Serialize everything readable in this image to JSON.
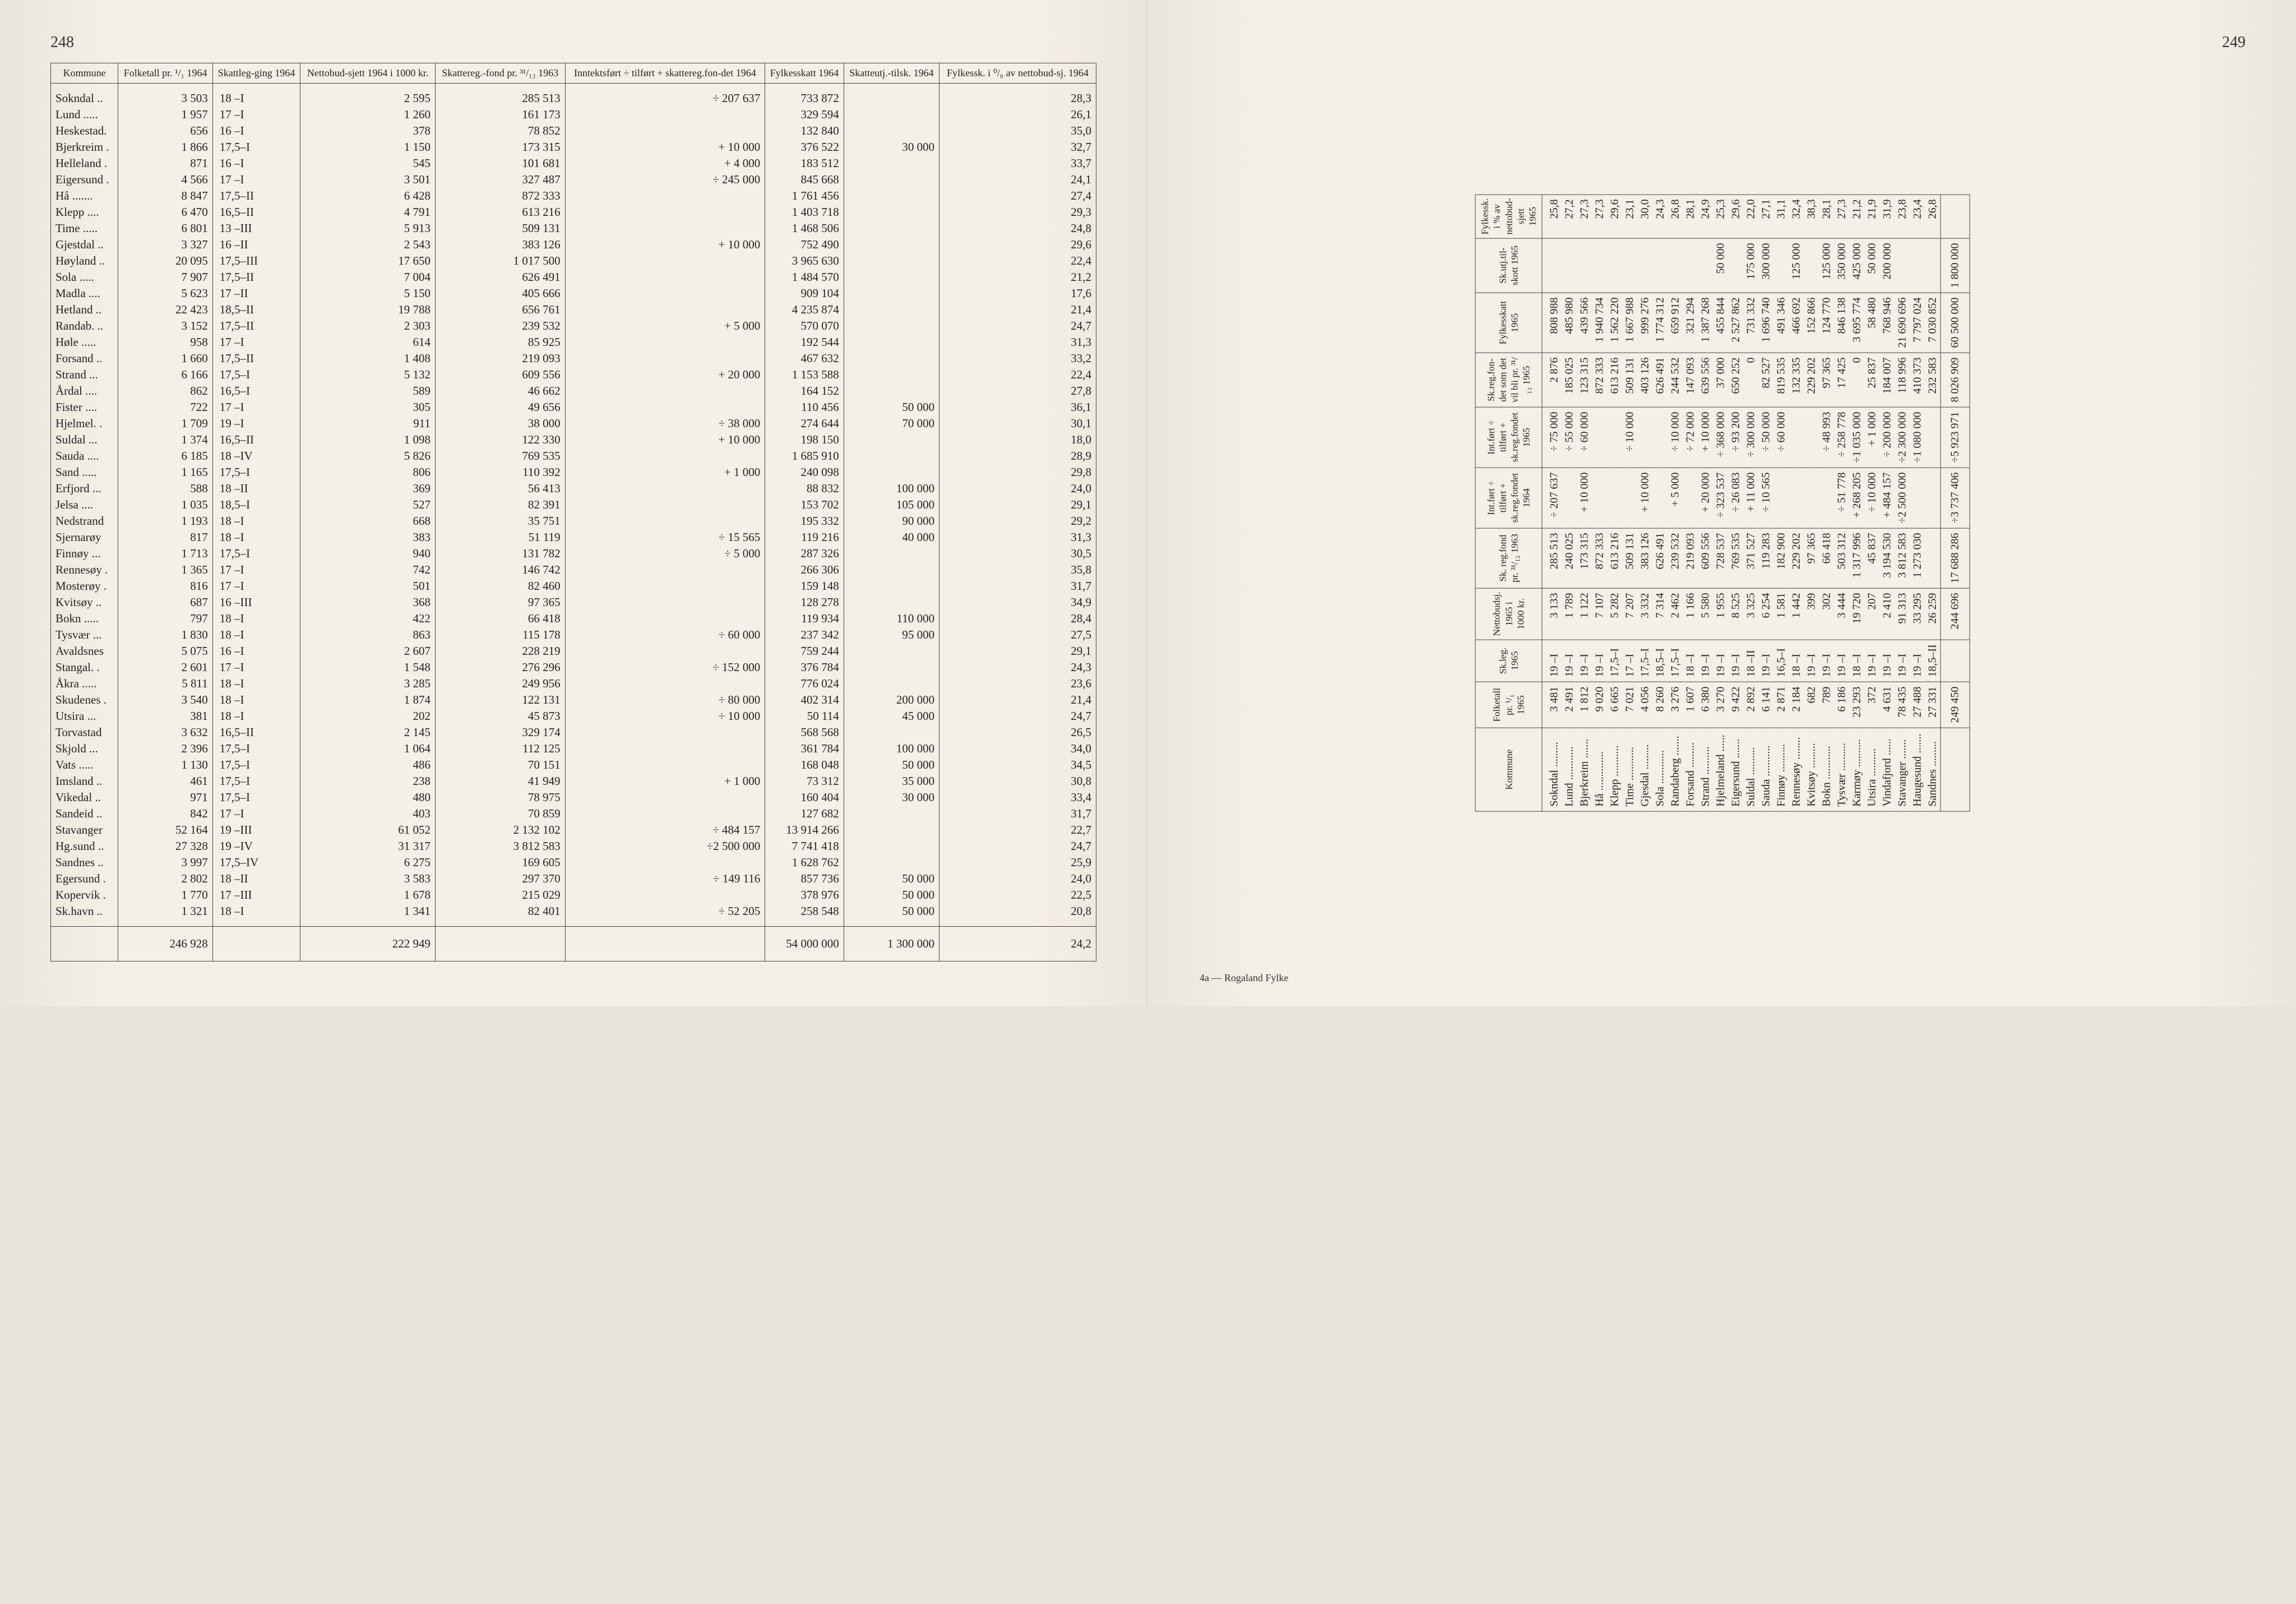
{
  "left_page_number": "248",
  "right_page_number": "249",
  "right_footnote": "4a — Rogaland Fylke",
  "left_headers": [
    "Kommune",
    "Folketall pr. ¹/₁ 1964",
    "Skattleg-ging 1964",
    "Nettobud-sjett 1964 i 1000 kr.",
    "Skattereg.-fond pr. ³¹/₁₂ 1963",
    "Inntektsført ÷ tilført + skattereg.fon-det 1964",
    "Fylkesskatt 1964",
    "Skatteutj.-tilsk. 1964",
    "Fylkessk. i ⁰/₀ av nettobud-sj. 1964"
  ],
  "left_rows": [
    [
      "Sokndal ..",
      "3 503",
      "18  –I",
      "2 595",
      "285 513",
      "÷   207 637",
      "733 872",
      "",
      "28,3"
    ],
    [
      "Lund .....",
      "1 957",
      "17  –I",
      "1 260",
      "161 173",
      "",
      "329 594",
      "",
      "26,1"
    ],
    [
      "Heskestad.",
      "656",
      "16  –I",
      "378",
      "78 852",
      "",
      "132 840",
      "",
      "35,0"
    ],
    [
      "Bjerkreim .",
      "1 866",
      "17,5–I",
      "1 150",
      "173 315",
      "+    10 000",
      "376 522",
      "30 000",
      "32,7"
    ],
    [
      "Helleland .",
      "871",
      "16  –I",
      "545",
      "101 681",
      "+     4 000",
      "183 512",
      "",
      "33,7"
    ],
    [
      "Eigersund .",
      "4 566",
      "17  –I",
      "3 501",
      "327 487",
      "÷   245 000",
      "845 668",
      "",
      "24,1"
    ],
    [
      "Hå .......",
      "8 847",
      "17,5–II",
      "6 428",
      "872 333",
      "",
      "1 761 456",
      "",
      "27,4"
    ],
    [
      "Klepp ....",
      "6 470",
      "16,5–II",
      "4 791",
      "613 216",
      "",
      "1 403 718",
      "",
      "29,3"
    ],
    [
      "Time .....",
      "6 801",
      "13 –III",
      "5 913",
      "509 131",
      "",
      "1 468 506",
      "",
      "24,8"
    ],
    [
      "Gjestdal ..",
      "3 327",
      "16 –II",
      "2 543",
      "383 126",
      "+    10 000",
      "752 490",
      "",
      "29,6"
    ],
    [
      "Høyland ..",
      "20 095",
      "17,5–III",
      "17 650",
      "1 017 500",
      "",
      "3 965 630",
      "",
      "22,4"
    ],
    [
      "Sola .....",
      "7 907",
      "17,5–II",
      "7 004",
      "626 491",
      "",
      "1 484 570",
      "",
      "21,2"
    ],
    [
      "Madla ....",
      "5 623",
      "17 –II",
      "5 150",
      "405 666",
      "",
      "909 104",
      "",
      "17,6"
    ],
    [
      "Hetland ..",
      "22 423",
      "18,5–II",
      "19 788",
      "656 761",
      "",
      "4 235 874",
      "",
      "21,4"
    ],
    [
      "Randab. ..",
      "3 152",
      "17,5–II",
      "2 303",
      "239 532",
      "+     5 000",
      "570 070",
      "",
      "24,7"
    ],
    [
      "Høle .....",
      "958",
      "17  –I",
      "614",
      "85 925",
      "",
      "192 544",
      "",
      "31,3"
    ],
    [
      "Forsand ..",
      "1 660",
      "17,5–II",
      "1 408",
      "219 093",
      "",
      "467 632",
      "",
      "33,2"
    ],
    [
      "Strand ...",
      "6 166",
      "17,5–I",
      "5 132",
      "609 556",
      "+    20 000",
      "1 153 588",
      "",
      "22,4"
    ],
    [
      "Årdal ....",
      "862",
      "16,5–I",
      "589",
      "46 662",
      "",
      "164 152",
      "",
      "27,8"
    ],
    [
      "Fister ....",
      "722",
      "17  –I",
      "305",
      "49 656",
      "",
      "110 456",
      "50 000",
      "36,1"
    ],
    [
      "Hjelmel. .",
      "1 709",
      "19  –I",
      "911",
      "38 000",
      "÷    38 000",
      "274 644",
      "70 000",
      "30,1"
    ],
    [
      "Suldal ...",
      "1 374",
      "16,5–II",
      "1 098",
      "122 330",
      "+    10 000",
      "198 150",
      "",
      "18,0"
    ],
    [
      "Sauda ....",
      "6 185",
      "18 –IV",
      "5 826",
      "769 535",
      "",
      "1 685 910",
      "",
      "28,9"
    ],
    [
      "Sand .....",
      "1 165",
      "17,5–I",
      "806",
      "110 392",
      "+     1 000",
      "240 098",
      "",
      "29,8"
    ],
    [
      "Erfjord ...",
      "588",
      "18 –II",
      "369",
      "56 413",
      "",
      "88 832",
      "100 000",
      "24,0"
    ],
    [
      "Jelsa ....",
      "1 035",
      "18,5–I",
      "527",
      "82 391",
      "",
      "153 702",
      "105 000",
      "29,1"
    ],
    [
      "Nedstrand ",
      "1 193",
      "18  –I",
      "668",
      "35 751",
      "",
      "195 332",
      "90 000",
      "29,2"
    ],
    [
      "Sjernarøy ",
      "817",
      "18  –I",
      "383",
      "51 119",
      "÷    15 565",
      "119 216",
      "40 000",
      "31,3"
    ],
    [
      "Finnøy ...",
      "1 713",
      "17,5–I",
      "940",
      "131 782",
      "÷     5 000",
      "287 326",
      "",
      "30,5"
    ],
    [
      "Rennesøy .",
      "1 365",
      "17  –I",
      "742",
      "146 742",
      "",
      "266 306",
      "",
      "35,8"
    ],
    [
      "Mosterøy .",
      "816",
      "17  –I",
      "501",
      "82 460",
      "",
      "159 148",
      "",
      "31,7"
    ],
    [
      "Kvitsøy ..",
      "687",
      "16 –III",
      "368",
      "97 365",
      "",
      "128 278",
      "",
      "34,9"
    ],
    [
      "Bokn .....",
      "797",
      "18  –I",
      "422",
      "66 418",
      "",
      "119 934",
      "110 000",
      "28,4"
    ],
    [
      "Tysvær ...",
      "1 830",
      "18  –I",
      "863",
      "115 178",
      "÷    60 000",
      "237 342",
      "95 000",
      "27,5"
    ],
    [
      "Avaldsnes ",
      "5 075",
      "16  –I",
      "2 607",
      "228 219",
      "",
      "759 244",
      "",
      "29,1"
    ],
    [
      "Stangal. .",
      "2 601",
      "17  –I",
      "1 548",
      "276 296",
      "÷   152 000",
      "376 784",
      "",
      "24,3"
    ],
    [
      "Åkra .....",
      "5 811",
      "18  –I",
      "3 285",
      "249 956",
      "",
      "776 024",
      "",
      "23,6"
    ],
    [
      "Skudenes .",
      "3 540",
      "18  –I",
      "1 874",
      "122 131",
      "÷    80 000",
      "402 314",
      "200 000",
      "21,4"
    ],
    [
      "Utsira ...",
      "381",
      "18  –I",
      "202",
      "45 873",
      "÷    10 000",
      "50 114",
      "45 000",
      "24,7"
    ],
    [
      "Torvastad ",
      "3 632",
      "16,5–II",
      "2 145",
      "329 174",
      "",
      "568 568",
      "",
      "26,5"
    ],
    [
      "Skjold ...",
      "2 396",
      "17,5–I",
      "1 064",
      "112 125",
      "",
      "361 784",
      "100 000",
      "34,0"
    ],
    [
      "Vats .....",
      "1 130",
      "17,5–I",
      "486",
      "70 151",
      "",
      "168 048",
      "50 000",
      "34,5"
    ],
    [
      "Imsland ..",
      "461",
      "17,5–I",
      "238",
      "41 949",
      "+     1 000",
      "73 312",
      "35 000",
      "30,8"
    ],
    [
      "Vikedal ..",
      "971",
      "17,5–I",
      "480",
      "78 975",
      "",
      "160 404",
      "30 000",
      "33,4"
    ],
    [
      "Sandeid ..",
      "842",
      "17  –I",
      "403",
      "70 859",
      "",
      "127 682",
      "",
      "31,7"
    ],
    [
      "Stavanger ",
      "52 164",
      "19 –III",
      "61 052",
      "2 132 102",
      "÷   484 157",
      "13 914 266",
      "",
      "22,7"
    ],
    [
      "Hg.sund ..",
      "27 328",
      "19 –IV",
      "31 317",
      "3 812 583",
      "÷2 500 000",
      "7 741 418",
      "",
      "24,7"
    ],
    [
      "Sandnes ..",
      "3 997",
      "17,5–IV",
      "6 275",
      "169 605",
      "",
      "1 628 762",
      "",
      "25,9"
    ],
    [
      "Egersund .",
      "2 802",
      "18 –II",
      "3 583",
      "297 370",
      "÷   149 116",
      "857 736",
      "50 000",
      "24,0"
    ],
    [
      "Kopervik .",
      "1 770",
      "17 –III",
      "1 678",
      "215 029",
      "",
      "378 976",
      "50 000",
      "22,5"
    ],
    [
      "Sk.havn ..",
      "1 321",
      "18  –I",
      "1 341",
      "82 401",
      "÷    52 205",
      "258 548",
      "50 000",
      "20,8"
    ]
  ],
  "left_totals": [
    "",
    "246 928",
    "",
    "222 949",
    "",
    "",
    "54 000 000",
    "1 300 000",
    "24,2"
  ],
  "right_headers": [
    "Kommune",
    "Folketall pr. ¹/₁ 1965",
    "Sk.leg. 1965",
    "Nettobudsj. 1965 i 1000 kr.",
    "Sk. reg.fond pr. ³¹/₁₂ 1963",
    "Int.ført ÷ tilført + sk.reg.fondet 1964",
    "Int.ført ÷ tilført + sk.reg.fondet 1965",
    "Sk.reg.fon-det som det vil bli pr. ³¹/₁₂ 1965",
    "Fylkesskatt 1965",
    "Sk.utj.til-skott 1965",
    "Fylkessk. i % av nettobud-sjett 1965"
  ],
  "right_rows": [
    [
      "Sokndal .........",
      "3 481",
      "19    –I",
      "3 133",
      "285 513",
      "÷   207 637",
      "÷    75 000",
      "2 876",
      "808 988",
      "",
      "25,8"
    ],
    [
      "Lund ............",
      "2 491",
      "19    –I",
      "1 789",
      "240 025",
      "",
      "÷    55 000",
      "185 025",
      "485 980",
      "",
      "27,2"
    ],
    [
      "Bjerkreim .......",
      "1 812",
      "19    –I",
      "1 122",
      "173 315",
      "+    10 000",
      "÷    60 000",
      "123 315",
      "439 566",
      "",
      "27,3"
    ],
    [
      "Hå ..............",
      "9 020",
      "19    –I",
      "7 107",
      "872 333",
      "",
      "",
      "872 333",
      "1 940 734",
      "",
      "27,3"
    ],
    [
      "Klepp ...........",
      "6 665",
      "17,5–I",
      "5 282",
      "613 216",
      "",
      "",
      "613 216",
      "1 562 220",
      "",
      "29,6"
    ],
    [
      "Time ............",
      "7 021",
      "17    –I",
      "7 207",
      "509 131",
      "",
      "÷    10 000",
      "509 131",
      "1 667 988",
      "",
      "23,1"
    ],
    [
      "Gjesdal .........",
      "4 056",
      "17,5–I",
      "3 332",
      "383 126",
      "+    10 000",
      "",
      "403 126",
      "999 276",
      "",
      "30,0"
    ],
    [
      "Sola ............",
      "8 260",
      "18,5–I",
      "7 314",
      "626 491",
      "",
      "",
      "626 491",
      "1 774 312",
      "",
      "24,3"
    ],
    [
      "Randaberg .......",
      "3 276",
      "17,5–I",
      "2 462",
      "239 532",
      "+     5 000",
      "÷    10 000",
      "244 532",
      "659 912",
      "",
      "26,8"
    ],
    [
      "Forsand .........",
      "1 607",
      "18    –I",
      "1 166",
      "219 093",
      "",
      "÷    72 000",
      "147 093",
      "321 294",
      "",
      "28,1"
    ],
    [
      "Strand ..........",
      "6 380",
      "19    –I",
      "5 580",
      "609 556",
      "+    20 000",
      "+    10 000",
      "639 556",
      "1 387 268",
      "",
      "24,9"
    ],
    [
      "Hjelmeland ......",
      "3 270",
      "19    –I",
      "1 955",
      "728 537",
      "÷   323 537",
      "÷   368 000",
      "37 000",
      "455 844",
      "50 000",
      "25,3"
    ],
    [
      "Eigersund .......",
      "9 422",
      "19    –I",
      "8 525",
      "769 535",
      "÷    26 083",
      "÷    93 200",
      "650 252",
      "2 527 862",
      "",
      "29,6"
    ],
    [
      "Suldal ..........",
      "2 892",
      "18  –II",
      "3 325",
      "371 527",
      "+    11 000",
      "÷   300 000",
      "0",
      "731 332",
      "175 000",
      "22,0"
    ],
    [
      "Sauda ...........",
      "6 141",
      "19    –I",
      "6 254",
      "119 283",
      "÷    10 565",
      "÷    50 000",
      "82 527",
      "1 696 740",
      "300 000",
      "27,1"
    ],
    [
      "Finnøy ..........",
      "2 871",
      "16,5–I",
      "1 581",
      "182 900",
      "",
      "÷    60 000",
      "819 535",
      "491 346",
      "",
      "31,1"
    ],
    [
      "Rennesøy ........",
      "2 184",
      "18    –I",
      "1 442",
      "229 202",
      "",
      "",
      "132 335",
      "466 692",
      "125 000",
      "32,4"
    ],
    [
      "Kvitsøy .........",
      "682",
      "19    –I",
      "399",
      "97 365",
      "",
      "",
      "229 202",
      "152 866",
      "",
      "38,3"
    ],
    [
      "Bokn ............",
      "789",
      "19    –I",
      "302",
      "66 418",
      "",
      "÷    48 993",
      "97 365",
      "124 770",
      "125 000",
      "28,1"
    ],
    [
      "Tysvær ..........",
      "6 186",
      "19    –I",
      "3 444",
      "503 312",
      "÷    51 778",
      "÷   258 778",
      "17 425",
      "846 138",
      "350 000",
      "27,3"
    ],
    [
      "Karmøy ..........",
      "23 293",
      "18    –I",
      "19 720",
      "1 317 996",
      "+   268 205",
      "÷1 035 000",
      "0",
      "3 695 774",
      "425 000",
      "21,2"
    ],
    [
      "Utsira ..........",
      "372",
      "19    –I",
      "207",
      "45 837",
      "÷    10 000",
      "+     1 000",
      "25 837",
      "58 480",
      "50 000",
      "21,9"
    ],
    [
      "Vindafjord ......",
      "4 631",
      "19    –I",
      "2 410",
      "3 194 530",
      "+   484 157",
      "÷   200 000",
      "184 007",
      "768 946",
      "200 000",
      "31,9"
    ],
    [
      "Stavanger .......",
      "78 435",
      "19    –I",
      "91 313",
      "3 812 583",
      "÷2 500 000",
      "÷2 300 000",
      "118 996",
      "21 690 696",
      "",
      "23,8"
    ],
    [
      "Haugesund .......",
      "27 488",
      "19    –I",
      "33 295",
      "1 273 030",
      "",
      "÷1 080 000",
      "410 373",
      "7 797 024",
      "",
      "23,4"
    ],
    [
      "Sandnes .........",
      "27 331",
      "18,5–II",
      "26 259",
      "",
      "",
      "",
      "232 583",
      "7 030 852",
      "",
      "26,8"
    ]
  ],
  "right_totals": [
    "",
    "249 450",
    "",
    "244 696",
    "17 688 286",
    "÷3 737 406",
    "÷5 923 971",
    "8 026 909",
    "60 500 000",
    "1 800 000",
    ""
  ]
}
